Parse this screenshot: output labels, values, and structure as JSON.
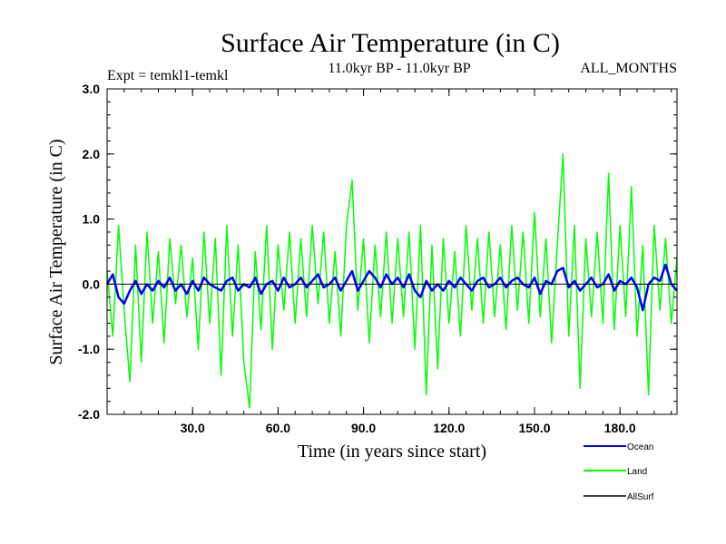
{
  "chart_data": {
    "type": "line",
    "title": "Surface Air Temperature (in C)",
    "subtitle_left": "Expt = temkl1-temkl",
    "subtitle_center": "11.0kyr BP - 11.0kyr BP",
    "subtitle_right": "ALL_MONTHS",
    "xlabel": "Time (in years since start)",
    "ylabel": "Surface Air Temperature (in C)",
    "xlim": [
      0,
      200
    ],
    "ylim": [
      -2.0,
      3.0
    ],
    "xticks": [
      {
        "value": 30,
        "label": "30.0"
      },
      {
        "value": 60,
        "label": "60.0"
      },
      {
        "value": 90,
        "label": "90.0"
      },
      {
        "value": 120,
        "label": "120.0"
      },
      {
        "value": 150,
        "label": "150.0"
      },
      {
        "value": 180,
        "label": "180.0"
      }
    ],
    "yticks": [
      {
        "value": -2.0,
        "label": "-2.0"
      },
      {
        "value": -1.0,
        "label": "-1.0"
      },
      {
        "value": 0.0,
        "label": "0.0"
      },
      {
        "value": 1.0,
        "label": "1.0"
      },
      {
        "value": 2.0,
        "label": "2.0"
      },
      {
        "value": 3.0,
        "label": "3.0"
      }
    ],
    "series": [
      {
        "name": "Land",
        "color": "#00ff00",
        "x": [
          0,
          2,
          4,
          6,
          8,
          10,
          12,
          14,
          16,
          18,
          20,
          22,
          24,
          26,
          28,
          30,
          32,
          34,
          36,
          38,
          40,
          42,
          44,
          46,
          48,
          50,
          52,
          54,
          56,
          58,
          60,
          62,
          64,
          66,
          68,
          70,
          72,
          74,
          76,
          78,
          80,
          82,
          84,
          86,
          88,
          90,
          92,
          94,
          96,
          98,
          100,
          102,
          104,
          106,
          108,
          110,
          112,
          114,
          116,
          118,
          120,
          122,
          124,
          126,
          128,
          130,
          132,
          134,
          136,
          138,
          140,
          142,
          144,
          146,
          148,
          150,
          152,
          154,
          156,
          158,
          160,
          162,
          164,
          166,
          168,
          170,
          172,
          174,
          176,
          178,
          180,
          182,
          184,
          186,
          188,
          190,
          192,
          194,
          196,
          198,
          200
        ],
        "values": [
          0.2,
          -0.8,
          0.9,
          -0.4,
          -1.5,
          0.6,
          -1.2,
          0.8,
          -0.6,
          0.5,
          -0.9,
          0.7,
          -0.3,
          0.6,
          -0.5,
          0.4,
          -1.0,
          0.8,
          -0.6,
          0.7,
          -1.4,
          0.9,
          -0.8,
          0.6,
          -1.2,
          -1.9,
          0.5,
          -0.7,
          0.9,
          -1.0,
          0.6,
          -0.4,
          0.8,
          -0.6,
          0.7,
          -0.5,
          0.9,
          -0.3,
          0.8,
          -0.6,
          0.5,
          -0.8,
          0.9,
          1.6,
          -0.4,
          0.7,
          -0.9,
          0.6,
          -0.5,
          0.8,
          -0.6,
          0.7,
          -0.5,
          0.8,
          -1.0,
          0.9,
          -1.7,
          0.6,
          -1.3,
          0.7,
          -0.6,
          0.5,
          -0.8,
          0.9,
          -0.4,
          0.7,
          -0.6,
          0.8,
          -0.5,
          0.6,
          -0.7,
          0.9,
          -0.4,
          0.8,
          -0.6,
          1.1,
          -0.5,
          0.7,
          -0.9,
          0.6,
          2.0,
          -0.8,
          0.9,
          -1.6,
          0.7,
          -0.5,
          0.8,
          -0.6,
          1.7,
          -0.7,
          0.9,
          -0.5,
          1.5,
          -0.8,
          0.6,
          -1.7,
          0.9,
          -0.4,
          0.7,
          -0.6,
          0.4
        ]
      },
      {
        "name": "Ocean",
        "color": "#0000ff",
        "x": [
          0,
          2,
          4,
          6,
          8,
          10,
          12,
          14,
          16,
          18,
          20,
          22,
          24,
          26,
          28,
          30,
          32,
          34,
          36,
          38,
          40,
          42,
          44,
          46,
          48,
          50,
          52,
          54,
          56,
          58,
          60,
          62,
          64,
          66,
          68,
          70,
          72,
          74,
          76,
          78,
          80,
          82,
          84,
          86,
          88,
          90,
          92,
          94,
          96,
          98,
          100,
          102,
          104,
          106,
          108,
          110,
          112,
          114,
          116,
          118,
          120,
          122,
          124,
          126,
          128,
          130,
          132,
          134,
          136,
          138,
          140,
          142,
          144,
          146,
          148,
          150,
          152,
          154,
          156,
          158,
          160,
          162,
          164,
          166,
          168,
          170,
          172,
          174,
          176,
          178,
          180,
          182,
          184,
          186,
          188,
          190,
          192,
          194,
          196,
          198,
          200
        ],
        "values": [
          0.0,
          0.15,
          -0.2,
          -0.3,
          -0.1,
          0.05,
          -0.15,
          0.0,
          -0.1,
          0.05,
          -0.05,
          0.1,
          -0.1,
          0.0,
          -0.15,
          0.05,
          -0.1,
          0.1,
          0.0,
          -0.05,
          -0.1,
          0.05,
          0.1,
          -0.1,
          0.0,
          -0.05,
          0.1,
          -0.15,
          0.0,
          0.05,
          -0.1,
          0.1,
          -0.05,
          0.0,
          0.1,
          -0.05,
          0.05,
          0.15,
          -0.05,
          0.0,
          0.1,
          -0.1,
          0.05,
          0.2,
          -0.1,
          0.05,
          0.2,
          0.1,
          -0.05,
          0.15,
          0.0,
          0.1,
          -0.05,
          0.15,
          -0.1,
          -0.2,
          0.05,
          -0.1,
          0.0,
          -0.1,
          0.05,
          -0.05,
          0.1,
          0.0,
          -0.1,
          0.05,
          0.1,
          -0.05,
          0.0,
          0.1,
          -0.05,
          0.05,
          0.1,
          0.0,
          -0.05,
          0.1,
          -0.15,
          0.05,
          0.0,
          0.2,
          0.25,
          -0.05,
          0.05,
          -0.1,
          0.0,
          0.1,
          -0.05,
          0.0,
          0.15,
          -0.1,
          0.05,
          0.0,
          0.1,
          -0.05,
          -0.4,
          0.0,
          0.1,
          0.05,
          0.3,
          0.0,
          -0.1
        ]
      },
      {
        "name": "AllSurf",
        "color": "#000000",
        "x": [
          0,
          200
        ],
        "values": [
          0.0,
          0.0
        ]
      }
    ],
    "legend": {
      "position": "bottom-right",
      "entries": [
        {
          "name": "Ocean",
          "color": "#0000ff"
        },
        {
          "name": "Land",
          "color": "#00ff00"
        },
        {
          "name": "AllSurf",
          "color": "#000000"
        }
      ]
    }
  }
}
